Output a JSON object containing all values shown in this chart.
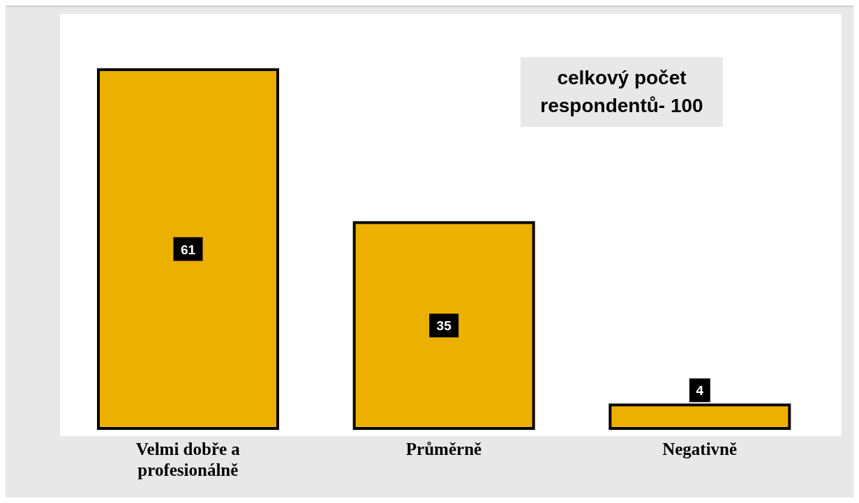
{
  "chart_data": {
    "type": "bar",
    "categories": [
      "Velmi dobře a profesionálně",
      "Průměrně",
      "Negativně"
    ],
    "values": [
      61,
      35,
      4
    ],
    "color": "#ecb000",
    "data_labels": true,
    "grid": false,
    "legend": false,
    "annotations": [
      "celkový počet respondentů- 100"
    ]
  }
}
